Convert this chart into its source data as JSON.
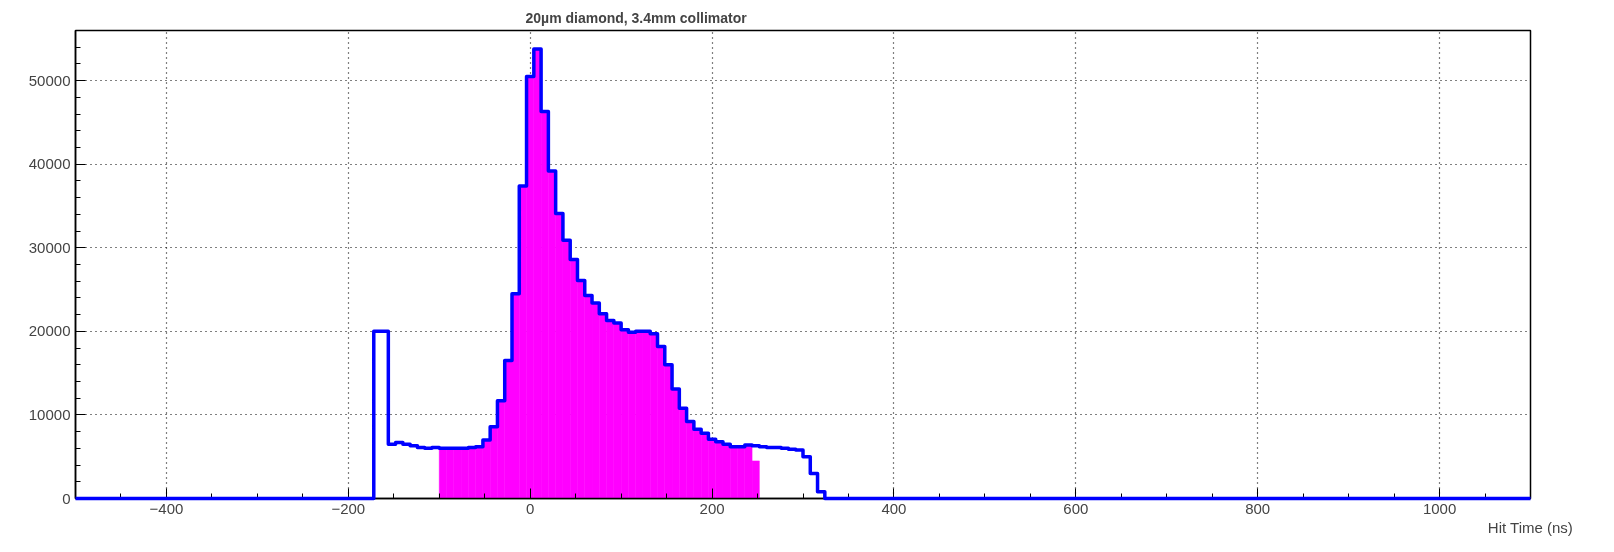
{
  "chart_data": {
    "type": "histogram",
    "title": "20µm diamond, 3.4mm collimator",
    "xlabel": "Hit Time (ns)",
    "xlim": [
      -500,
      1100
    ],
    "xticks": [
      -400,
      -200,
      0,
      200,
      400,
      600,
      800,
      1000
    ],
    "ylim": [
      0,
      56000
    ],
    "yticks": [
      0,
      10000,
      20000,
      30000,
      40000,
      50000
    ],
    "grid": true,
    "series": [
      {
        "color": "#ff00ff",
        "bins": [
          -100,
          -92,
          -84,
          -76,
          -68,
          -60,
          -52,
          -44,
          -36,
          -28,
          -20,
          -12,
          -4,
          4,
          12,
          20,
          28,
          36,
          44,
          52,
          60,
          68,
          76,
          84,
          92,
          100,
          108,
          116,
          124,
          132,
          140,
          148,
          156,
          164,
          172,
          180,
          188,
          196,
          204,
          212,
          220,
          228,
          236,
          244,
          252
        ],
        "values": [
          6000,
          6000,
          6000,
          6000,
          6100,
          6200,
          7000,
          8600,
          11700,
          16500,
          24500,
          37400,
          50500,
          53800,
          46300,
          39200,
          34100,
          30900,
          28600,
          26100,
          24300,
          23400,
          22100,
          21300,
          21000,
          20200,
          19900,
          20000,
          20000,
          19700,
          18200,
          16000,
          13100,
          10800,
          9200,
          8300,
          7800,
          7100,
          6800,
          6500,
          6200,
          6200,
          6400,
          4500
        ]
      },
      {
        "type": "step",
        "color": "#0000ff",
        "x": [
          -500,
          -172,
          -164,
          -156,
          -148,
          -140,
          -132,
          -124,
          -116,
          -108,
          -100,
          -92,
          -84,
          -76,
          -68,
          -60,
          -52,
          -44,
          -36,
          -28,
          -20,
          -12,
          -4,
          4,
          12,
          20,
          28,
          36,
          44,
          52,
          60,
          68,
          76,
          84,
          92,
          100,
          108,
          116,
          124,
          132,
          140,
          148,
          156,
          164,
          172,
          180,
          188,
          196,
          204,
          212,
          220,
          228,
          236,
          244,
          252,
          260,
          268,
          276,
          284,
          292,
          300,
          308,
          316,
          324,
          1100
        ],
        "values": [
          0,
          20000,
          20000,
          6500,
          6700,
          6500,
          6300,
          6100,
          6000,
          6100,
          6000,
          6000,
          6000,
          6000,
          6100,
          6200,
          7000,
          8600,
          11700,
          16500,
          24500,
          37400,
          50500,
          53800,
          46300,
          39200,
          34100,
          30900,
          28600,
          26100,
          24300,
          23400,
          22100,
          21300,
          21000,
          20200,
          19900,
          20000,
          20000,
          19700,
          18200,
          16000,
          13100,
          10800,
          9200,
          8300,
          7800,
          7100,
          6800,
          6500,
          6200,
          6200,
          6400,
          6300,
          6200,
          6100,
          6100,
          6000,
          5900,
          5800,
          5000,
          3000,
          800,
          0,
          0
        ]
      }
    ]
  }
}
